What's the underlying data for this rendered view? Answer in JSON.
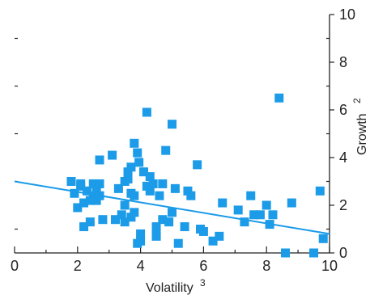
{
  "chart_data": {
    "type": "scatter",
    "title": "",
    "xlabel": "Volatility",
    "xlabel_superscript": "3",
    "ylabel": "Growth",
    "ylabel_superscript": "2",
    "xlim": [
      0,
      10
    ],
    "ylim": [
      0,
      10
    ],
    "x_ticks": [
      "0",
      "2",
      "4",
      "6",
      "8",
      "10"
    ],
    "y_ticks": [
      "0",
      "2",
      "4",
      "6",
      "8",
      "10"
    ],
    "grid": false,
    "legend": "none",
    "marker_color": "#1b9be8",
    "trend_color": "#1b9be8",
    "axis_color": "#222222",
    "series": [
      {
        "marker": "square",
        "points": [
          [
            1.8,
            3.0
          ],
          [
            1.9,
            2.5
          ],
          [
            2.0,
            1.9
          ],
          [
            2.1,
            2.8
          ],
          [
            2.1,
            2.9
          ],
          [
            2.2,
            1.1
          ],
          [
            2.2,
            2.1
          ],
          [
            2.3,
            2.6
          ],
          [
            2.4,
            1.3
          ],
          [
            2.4,
            2.2
          ],
          [
            2.5,
            2.9
          ],
          [
            2.5,
            2.4
          ],
          [
            2.6,
            2.2
          ],
          [
            2.6,
            2.6
          ],
          [
            2.7,
            2.4
          ],
          [
            2.7,
            2.9
          ],
          [
            2.7,
            3.9
          ],
          [
            2.8,
            1.4
          ],
          [
            3.1,
            4.1
          ],
          [
            3.2,
            1.4
          ],
          [
            3.3,
            2.7
          ],
          [
            3.4,
            1.6
          ],
          [
            3.5,
            2.0
          ],
          [
            3.5,
            1.3
          ],
          [
            3.5,
            3.0
          ],
          [
            3.6,
            3.1
          ],
          [
            3.6,
            3.4
          ],
          [
            3.7,
            1.5
          ],
          [
            3.7,
            2.5
          ],
          [
            3.7,
            3.6
          ],
          [
            3.8,
            4.6
          ],
          [
            3.8,
            2.4
          ],
          [
            3.8,
            1.7
          ],
          [
            3.9,
            4.2
          ],
          [
            3.9,
            0.4
          ],
          [
            3.95,
            3.8
          ],
          [
            4.0,
            0.5
          ],
          [
            4.0,
            0.8
          ],
          [
            4.1,
            3.4
          ],
          [
            4.2,
            2.8
          ],
          [
            4.2,
            5.9
          ],
          [
            4.3,
            3.2
          ],
          [
            4.3,
            2.6
          ],
          [
            4.4,
            2.9
          ],
          [
            4.5,
            1.1
          ],
          [
            4.5,
            0.7
          ],
          [
            4.5,
            0.8
          ],
          [
            4.6,
            2.4
          ],
          [
            4.7,
            2.9
          ],
          [
            4.7,
            1.4
          ],
          [
            4.8,
            4.3
          ],
          [
            4.9,
            1.3
          ],
          [
            5.0,
            1.7
          ],
          [
            5.0,
            5.4
          ],
          [
            5.1,
            2.7
          ],
          [
            5.2,
            0.4
          ],
          [
            5.4,
            1.1
          ],
          [
            5.5,
            2.6
          ],
          [
            5.6,
            2.4
          ],
          [
            5.8,
            3.7
          ],
          [
            5.9,
            1.0
          ],
          [
            6.0,
            0.9
          ],
          [
            6.3,
            0.5
          ],
          [
            6.5,
            0.7
          ],
          [
            6.6,
            2.1
          ],
          [
            7.1,
            1.8
          ],
          [
            7.3,
            1.3
          ],
          [
            7.5,
            2.4
          ],
          [
            7.6,
            1.6
          ],
          [
            7.8,
            1.6
          ],
          [
            8.0,
            2.0
          ],
          [
            8.1,
            1.2
          ],
          [
            8.2,
            1.6
          ],
          [
            8.4,
            6.5
          ],
          [
            8.6,
            0.0
          ],
          [
            8.8,
            2.1
          ],
          [
            9.5,
            0.0
          ],
          [
            9.7,
            2.6
          ],
          [
            9.8,
            0.6
          ]
        ]
      }
    ],
    "trendline": {
      "x": [
        0,
        10
      ],
      "y": [
        3.0,
        0.8
      ]
    }
  }
}
